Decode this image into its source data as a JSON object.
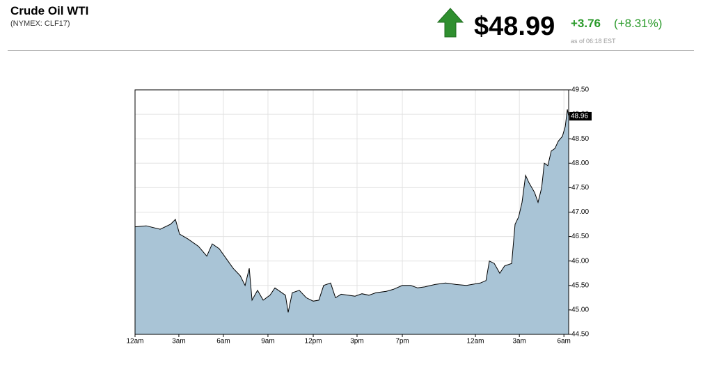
{
  "header": {
    "title": "Crude Oil WTI",
    "subtitle": "(NYMEX: CLF17)",
    "price": "$48.99",
    "change": "+3.76",
    "change_pct": "(+8.31%)",
    "as_of": "as of 06:18 EST"
  },
  "chart_data": {
    "type": "area",
    "color": "#a9c4d6",
    "line_color": "#000000",
    "grid": true,
    "x": [
      0,
      0.75,
      1.69,
      2.39,
      2.72,
      3.0,
      3.56,
      4.27,
      4.83,
      5.2,
      5.67,
      6.14,
      6.61,
      7.08,
      7.41,
      7.69,
      7.88,
      8.25,
      8.63,
      9.09,
      9.42,
      9.89,
      10.13,
      10.31,
      10.59,
      11.06,
      11.53,
      12.0,
      12.38,
      12.7,
      13.17,
      13.5,
      13.88,
      14.34,
      14.81,
      15.28,
      15.75,
      16.22,
      16.92,
      17.39,
      18.0,
      18.56,
      19.03,
      19.5,
      20.2,
      20.91,
      21.61,
      22.31,
      23.25,
      23.63,
      23.86,
      24.19,
      24.56,
      24.89,
      25.36,
      25.59,
      25.83,
      26.06,
      26.3,
      26.53,
      26.91,
      27.14,
      27.38,
      27.56,
      27.8,
      28.03,
      28.27,
      28.5,
      28.78,
      28.97,
      29.11,
      29.2
    ],
    "values": [
      46.7,
      46.72,
      46.65,
      46.75,
      46.85,
      46.55,
      46.45,
      46.3,
      46.1,
      46.35,
      46.25,
      46.05,
      45.85,
      45.7,
      45.5,
      45.85,
      45.2,
      45.4,
      45.2,
      45.3,
      45.45,
      45.35,
      45.3,
      44.95,
      45.35,
      45.4,
      45.25,
      45.18,
      45.2,
      45.5,
      45.55,
      45.25,
      45.32,
      45.3,
      45.28,
      45.33,
      45.3,
      45.35,
      45.38,
      45.42,
      45.5,
      45.5,
      45.45,
      45.47,
      45.52,
      45.55,
      45.52,
      45.5,
      45.55,
      45.6,
      46.0,
      45.95,
      45.75,
      45.9,
      45.95,
      46.75,
      46.9,
      47.2,
      47.75,
      47.6,
      47.4,
      47.2,
      47.5,
      48.0,
      47.95,
      48.25,
      48.3,
      48.45,
      48.55,
      48.75,
      49.1,
      48.96
    ],
    "xlim": [
      0,
      29.2
    ],
    "xticks": [
      {
        "value": 0,
        "label": "12am"
      },
      {
        "value": 2.95,
        "label": "3am"
      },
      {
        "value": 5.95,
        "label": "6am"
      },
      {
        "value": 8.95,
        "label": "9am"
      },
      {
        "value": 12.0,
        "label": "12pm"
      },
      {
        "value": 14.95,
        "label": "3pm"
      },
      {
        "value": 18.0,
        "label": "7pm"
      },
      {
        "value": 22.92,
        "label": "12am"
      },
      {
        "value": 25.88,
        "label": "3am"
      },
      {
        "value": 28.88,
        "label": "6am"
      }
    ],
    "ylim": [
      44.5,
      49.5
    ],
    "yticks": [
      {
        "value": 44.5,
        "label": "44.50"
      },
      {
        "value": 45,
        "label": "45.00"
      },
      {
        "value": 45.5,
        "label": "45.50"
      },
      {
        "value": 46,
        "label": "46.00"
      },
      {
        "value": 46.5,
        "label": "46.50"
      },
      {
        "value": 47,
        "label": "47.00"
      },
      {
        "value": 47.5,
        "label": "47.50"
      },
      {
        "value": 48,
        "label": "48.00"
      },
      {
        "value": 48.5,
        "label": "48.50"
      },
      {
        "value": 49,
        "label": "49.00"
      },
      {
        "value": 49.5,
        "label": "49.50"
      }
    ]
  }
}
